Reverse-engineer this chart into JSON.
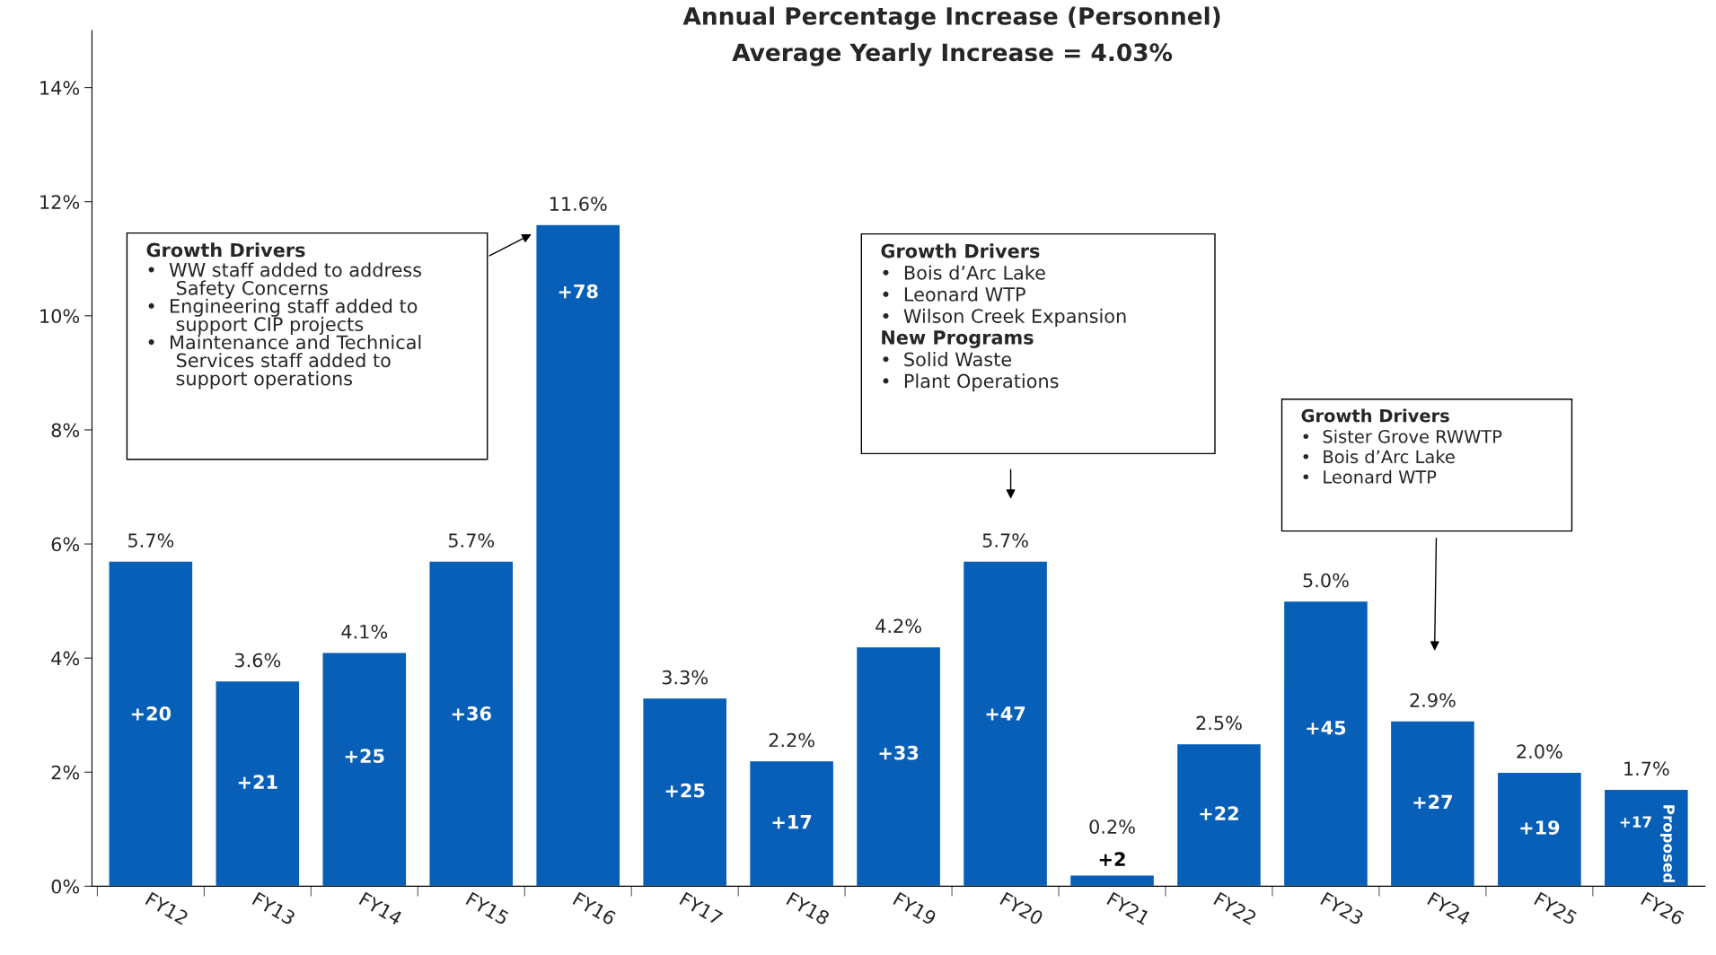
{
  "chart_data": {
    "type": "bar",
    "title": "Annual Percentage Increase (Personnel)",
    "subtitle": "Average Yearly Increase = 4.03%",
    "categories": [
      "FY12",
      "FY13",
      "FY14",
      "FY15",
      "FY16",
      "FY17",
      "FY18",
      "FY19",
      "FY20",
      "FY21",
      "FY22",
      "FY23",
      "FY24",
      "FY25",
      "FY26"
    ],
    "values": [
      5.7,
      3.6,
      4.1,
      5.7,
      11.6,
      3.3,
      2.2,
      4.2,
      5.7,
      0.2,
      2.5,
      5.0,
      2.9,
      2.0,
      1.7
    ],
    "value_labels": [
      "5.7%",
      "3.6%",
      "4.1%",
      "5.7%",
      "11.6%",
      "3.3%",
      "2.2%",
      "4.2%",
      "5.7%",
      "0.2%",
      "2.5%",
      "5.0%",
      "2.9%",
      "2.0%",
      "1.7%"
    ],
    "color": "#075fb8",
    "ylim": [
      0,
      15
    ],
    "yticks": [
      {
        "value": 0,
        "label": "0%"
      },
      {
        "value": 2,
        "label": "2%"
      },
      {
        "value": 4,
        "label": "4%"
      },
      {
        "value": 6,
        "label": "6%"
      },
      {
        "value": 8,
        "label": "8%"
      },
      {
        "value": 10,
        "label": "10%"
      },
      {
        "value": 12,
        "label": "12%"
      },
      {
        "value": 14,
        "label": "14%"
      }
    ],
    "grid": false,
    "legend": false,
    "annotations": [
      "Growth Drivers",
      "•  WW staff added to address\n     Safety Concerns\n•  Engineering staff added to\n     support CIP projects\n•  Maintenance and Technical\n     Services staff added to\n     support operations",
      "Growth Drivers",
      "•  Bois d’Arc Lake\n•  Leonard WTP\n•  Wilson Creek Expansion",
      "New Programs",
      "•  Solid Waste\n•  Plant Operations",
      "Growth Drivers",
      "•  Sister Grove RWWTP\n•  Bois d’Arc Lake\n•  Leonard WTP",
      "Proposed",
      "+20",
      "+21",
      "+25",
      "+36",
      "+78",
      "+25",
      "+17",
      "+33",
      "+47",
      "+2",
      "+22",
      "+45",
      "+27",
      "+19",
      "+17"
    ]
  }
}
